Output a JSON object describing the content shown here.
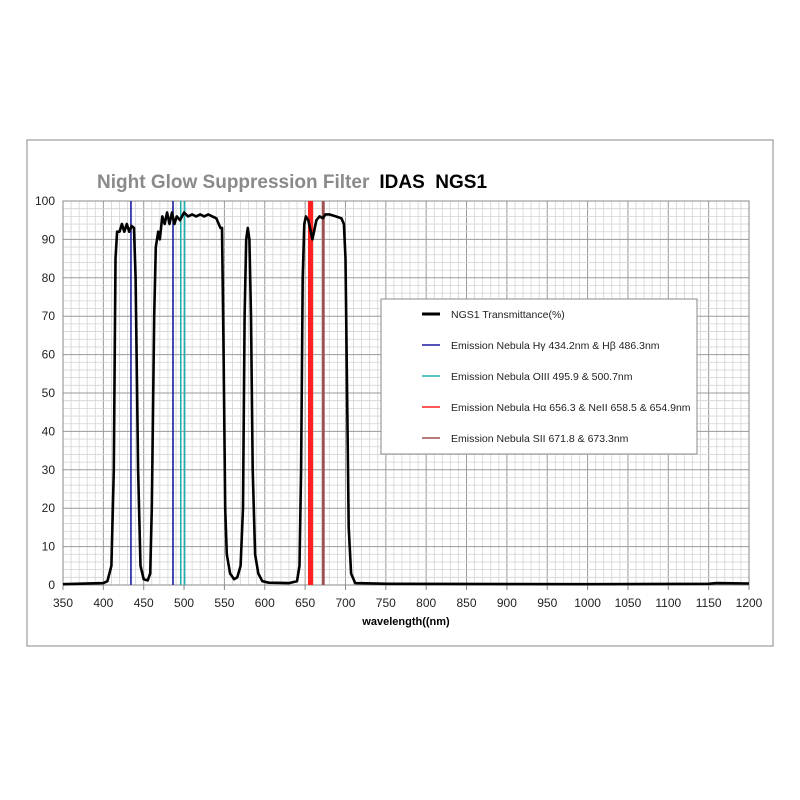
{
  "chart_data": {
    "type": "line",
    "title_part1": "Night Glow Suppression Filter",
    "title_part2": "IDAS  NGS1",
    "xlabel": "wavelength((nm)",
    "ylabel": "",
    "xlim": [
      350,
      1200
    ],
    "ylim": [
      0,
      100
    ],
    "x_major_step": 50,
    "x_minor_step": 10,
    "y_major_step": 10,
    "y_minor_step": 2,
    "grid": true,
    "legend_placement": "center-right",
    "series": [
      {
        "name": "NGS1  Transmittance(%)",
        "color": "#000000",
        "points": [
          [
            350,
            0.2
          ],
          [
            400,
            0.5
          ],
          [
            405,
            1
          ],
          [
            410,
            5
          ],
          [
            413,
            30
          ],
          [
            415,
            85
          ],
          [
            417,
            92
          ],
          [
            420,
            92
          ],
          [
            423,
            94
          ],
          [
            426,
            92
          ],
          [
            429,
            94
          ],
          [
            432,
            92
          ],
          [
            435,
            93.5
          ],
          [
            438,
            93
          ],
          [
            440,
            80
          ],
          [
            443,
            30
          ],
          [
            446,
            5
          ],
          [
            450,
            1.5
          ],
          [
            455,
            1.2
          ],
          [
            458,
            3
          ],
          [
            460,
            20
          ],
          [
            463,
            70
          ],
          [
            465,
            88
          ],
          [
            468,
            92
          ],
          [
            470,
            90
          ],
          [
            473,
            96
          ],
          [
            476,
            94
          ],
          [
            479,
            97
          ],
          [
            482,
            94
          ],
          [
            485,
            97
          ],
          [
            488,
            94
          ],
          [
            491,
            96
          ],
          [
            495,
            95
          ],
          [
            500,
            97
          ],
          [
            505,
            96
          ],
          [
            510,
            96.5
          ],
          [
            515,
            96
          ],
          [
            520,
            96.5
          ],
          [
            525,
            96
          ],
          [
            530,
            96.5
          ],
          [
            535,
            96
          ],
          [
            540,
            95.5
          ],
          [
            545,
            93
          ],
          [
            547,
            93
          ],
          [
            549,
            60
          ],
          [
            551,
            20
          ],
          [
            553,
            8
          ],
          [
            557,
            3
          ],
          [
            562,
            1.5
          ],
          [
            566,
            2
          ],
          [
            570,
            5
          ],
          [
            573,
            20
          ],
          [
            575,
            70
          ],
          [
            577,
            90
          ],
          [
            579,
            93
          ],
          [
            581,
            90
          ],
          [
            583,
            70
          ],
          [
            585,
            30
          ],
          [
            588,
            8
          ],
          [
            592,
            3
          ],
          [
            597,
            1
          ],
          [
            605,
            0.6
          ],
          [
            630,
            0.5
          ],
          [
            640,
            1
          ],
          [
            643,
            5
          ],
          [
            645,
            30
          ],
          [
            647,
            80
          ],
          [
            649,
            94
          ],
          [
            651,
            96
          ],
          [
            654,
            95
          ],
          [
            657,
            92
          ],
          [
            659,
            90
          ],
          [
            661,
            92
          ],
          [
            664,
            95
          ],
          [
            668,
            96
          ],
          [
            672,
            95.5
          ],
          [
            675,
            96.5
          ],
          [
            680,
            96.5
          ],
          [
            688,
            96
          ],
          [
            695,
            95.5
          ],
          [
            698,
            94
          ],
          [
            700,
            85
          ],
          [
            702,
            50
          ],
          [
            704,
            15
          ],
          [
            707,
            3
          ],
          [
            712,
            0.5
          ],
          [
            750,
            0.3
          ],
          [
            1000,
            0.2
          ],
          [
            1150,
            0.3
          ],
          [
            1160,
            0.5
          ],
          [
            1200,
            0.4
          ]
        ]
      },
      {
        "name": "Emission Nebula  Hγ 434.2nm  &  Hβ 486.3nm",
        "color": "#1a1aa0",
        "lines": [
          434.2,
          486.3
        ]
      },
      {
        "name": "Emission Nebula  OIII  495.9 & 500.7nm",
        "color": "#20b0b0",
        "lines": [
          495.9,
          500.7
        ]
      },
      {
        "name": "Emission Nebula  Hα 656.3 & NeII  658.5 & 654.9nm",
        "color": "#ff2020",
        "lines": [
          654.9,
          656.3,
          658.5
        ]
      },
      {
        "name": "Emission Nebula  SII 671.8 & 673.3nm",
        "color": "#a05050",
        "lines": [
          671.8,
          673.3
        ]
      }
    ]
  }
}
